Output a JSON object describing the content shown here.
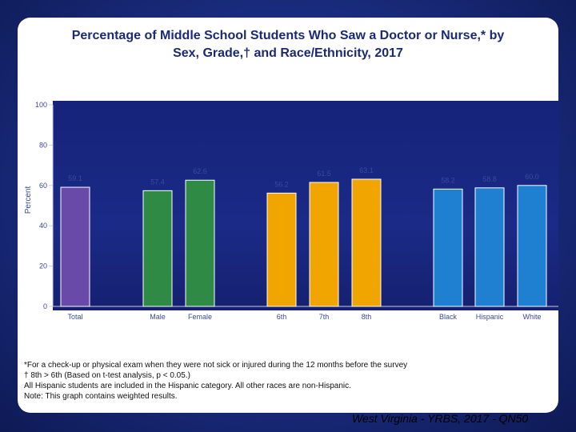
{
  "title_line1": "Percentage of Middle School Students Who Saw a Doctor or Nurse,* by",
  "title_line2": "Sex, Grade,† and Race/Ethnicity, 2017",
  "footnotes": [
    "*For a check-up or physical exam when they were not sick or injured during the 12 months before the survey",
    "† 8th > 6th (Based on t-test analysis, p < 0.05.)",
    "All Hispanic students are included in the Hispanic category.  All other races are non-Hispanic.",
    "Note: This graph contains weighted results."
  ],
  "source": "West Virginia - YRBS, 2017 - QN50",
  "colors": {
    "Total": "#6a4aa8",
    "Male": "#2f8a45",
    "Female": "#2f8a45",
    "6th": "#f0a500",
    "7th": "#f0a500",
    "8th": "#f0a500",
    "Black": "#1f7fd0",
    "Hispanic": "#1f7fd0",
    "White": "#1f7fd0",
    "axis_text": "#3a4a9a"
  },
  "chart_data": {
    "type": "bar",
    "ylabel": "Percent",
    "ylim": [
      0,
      100
    ],
    "yticks": [
      0,
      20,
      40,
      60,
      80,
      100
    ],
    "grid": false,
    "categories": [
      "Total",
      "Male",
      "Female",
      "6th",
      "7th",
      "8th",
      "Black",
      "Hispanic",
      "White"
    ],
    "values": [
      59.1,
      57.4,
      62.6,
      56.2,
      61.5,
      63.1,
      58.2,
      58.8,
      60.0
    ],
    "value_labels": [
      "59.1",
      "57.4",
      "62.6",
      "56.2",
      "61.5",
      "63.1",
      "58.2",
      "58.8",
      "60.0"
    ]
  }
}
